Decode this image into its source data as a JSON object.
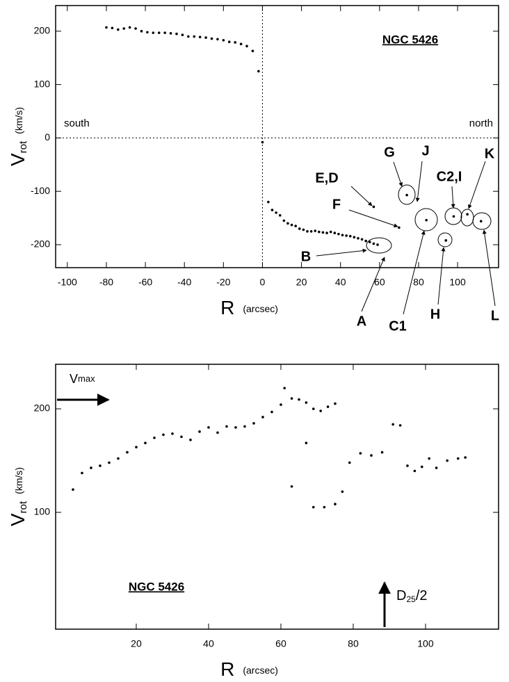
{
  "chart_data": [
    {
      "type": "scatter",
      "title": "NGC 5426",
      "xlabel": {
        "symbol": "R",
        "unit": "(arcsec)"
      },
      "ylabel": {
        "symbol": "V",
        "subscript": "rot",
        "unit": "(km/s)"
      },
      "side_labels": [
        "south",
        "north"
      ],
      "annotations": [
        "G",
        "J",
        "E,D",
        "F",
        "C2,I",
        "K",
        "B",
        "A",
        "C1",
        "H",
        "L"
      ],
      "xlim": [
        -106,
        121
      ],
      "ylim": [
        -243,
        248
      ],
      "xticks": [
        -100,
        -80,
        -60,
        -40,
        -20,
        0,
        20,
        40,
        60,
        80,
        100
      ],
      "yticks": [
        -200,
        -100,
        0,
        100,
        200
      ],
      "zero_lines": true,
      "series": [
        {
          "color": "#000000",
          "x": [
            -80,
            -77,
            -74,
            -71,
            -68,
            -65,
            -62,
            -59,
            -56,
            -53,
            -50,
            -47,
            -44,
            -41,
            -38,
            -35,
            -32,
            -29,
            -26,
            -23,
            -20,
            -17,
            -14,
            -11,
            -8,
            -5,
            -2
          ],
          "values": [
            207,
            206,
            203,
            205,
            207,
            205,
            200,
            198,
            197,
            197,
            197,
            196,
            195,
            193,
            190,
            190,
            189,
            188,
            186,
            185,
            183,
            180,
            179,
            176,
            172,
            163,
            125
          ]
        },
        {
          "color": "#000000",
          "x": [
            0,
            3,
            5,
            7,
            9,
            11,
            13,
            15,
            17,
            19,
            21,
            23,
            25,
            27,
            29,
            31,
            33,
            35,
            37,
            39,
            41,
            43,
            45,
            47,
            49,
            51,
            53,
            55,
            57,
            59
          ],
          "values": [
            -8,
            -120,
            -135,
            -140,
            -145,
            -155,
            -160,
            -163,
            -165,
            -170,
            -172,
            -175,
            -175,
            -174,
            -176,
            -177,
            -178,
            -176,
            -178,
            -180,
            -182,
            -183,
            -184,
            -186,
            -188,
            -190,
            -193,
            -195,
            -198,
            -200
          ]
        },
        {
          "color": "#000000",
          "x": [
            57,
            70,
            74,
            84,
            94,
            98,
            105,
            112
          ],
          "values": [
            -129,
            -168,
            -107,
            -154,
            -192,
            -147,
            -143,
            -156
          ]
        }
      ]
    },
    {
      "type": "scatter",
      "title": "NGC 5426",
      "xlabel": {
        "symbol": "R",
        "unit": "(arcsec)"
      },
      "ylabel": {
        "symbol": "V",
        "subscript": "rot",
        "unit": "(km/s)"
      },
      "vmax_label": {
        "symbol": "V",
        "subscript": "max"
      },
      "d25_label": {
        "symbol": "D",
        "subscript": "25",
        "suffix": "/2"
      },
      "xlim": [
        -2.3,
        120.2
      ],
      "ylim": [
        -12.8,
        243
      ],
      "xticks": [
        20,
        40,
        60,
        80,
        100
      ],
      "yticks": [
        100,
        200
      ],
      "zero_lines": false,
      "series": [
        {
          "color": "#000000",
          "x": [
            2.5,
            5,
            7.5,
            10,
            12.5,
            15,
            17.5,
            20,
            22.5,
            25,
            27.5,
            30,
            32.5,
            35,
            37.5,
            40,
            42.5,
            45,
            47.5,
            50,
            52.5,
            55,
            57.5,
            60,
            61,
            63,
            65,
            67,
            69,
            71,
            73,
            75
          ],
          "values": [
            122,
            138,
            143,
            145,
            148,
            152,
            158,
            163,
            167,
            172,
            175,
            176,
            173,
            170,
            178,
            182,
            177,
            183,
            182,
            183,
            186,
            192,
            197,
            204,
            220,
            210,
            209,
            206,
            200,
            198,
            202,
            205
          ]
        },
        {
          "color": "#000000",
          "x": [
            63,
            67,
            69,
            72,
            75,
            77,
            79,
            82,
            85,
            88,
            91,
            93,
            95,
            97,
            99,
            101,
            103,
            106,
            109,
            111
          ],
          "values": [
            125,
            167,
            105,
            105,
            108,
            120,
            148,
            157,
            155,
            158,
            185,
            184,
            145,
            140,
            144,
            152,
            143,
            150,
            152,
            153
          ]
        }
      ]
    }
  ]
}
